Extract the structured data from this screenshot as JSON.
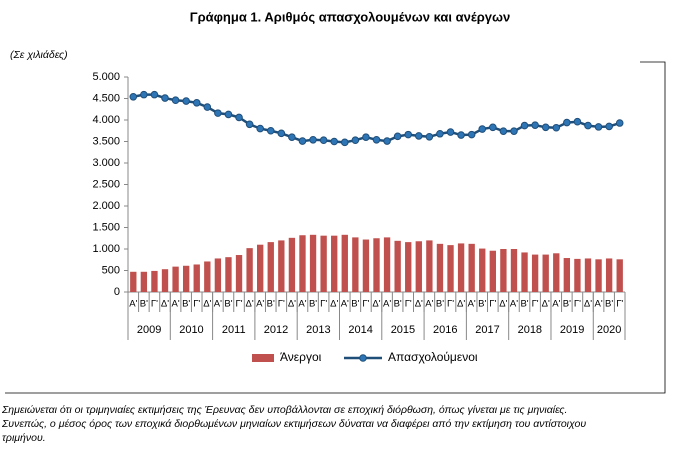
{
  "chart_data": {
    "type": "bar_line",
    "title": "Γράφημα 1. Αριθμός απασχολουμένων και ανέργων",
    "unit_label": "(Σε χιλιάδες)",
    "categories": [
      "Α'",
      "Β'",
      "Γ'",
      "Δ'",
      "Α'",
      "Β'",
      "Γ'",
      "Δ'",
      "Α'",
      "Β'",
      "Γ'",
      "Δ'",
      "Α'",
      "Β'",
      "Γ'",
      "Δ'",
      "Α'",
      "Β'",
      "Γ'",
      "Δ'",
      "Α'",
      "Β'",
      "Γ'",
      "Δ'",
      "Α'",
      "Β'",
      "Γ'",
      "Δ'",
      "Α'",
      "Β'",
      "Γ'",
      "Δ'",
      "Α'",
      "Β'",
      "Γ'",
      "Δ'",
      "Α'",
      "Β'",
      "Γ'",
      "Δ'",
      "Α'",
      "Β'",
      "Γ'",
      "Δ'",
      "Α'",
      "Β'",
      "Γ'"
    ],
    "years": [
      "2009",
      "2010",
      "2011",
      "2012",
      "2013",
      "2014",
      "2015",
      "2016",
      "2017",
      "2018",
      "2019",
      "2020"
    ],
    "series": [
      {
        "name": "Άνεργοι",
        "kind": "bar",
        "color": "#c0504d",
        "values": [
          470,
          470,
          490,
          530,
          590,
          610,
          640,
          710,
          780,
          810,
          860,
          1020,
          1100,
          1160,
          1200,
          1260,
          1320,
          1330,
          1310,
          1310,
          1330,
          1270,
          1220,
          1250,
          1270,
          1190,
          1160,
          1180,
          1200,
          1120,
          1090,
          1130,
          1120,
          1010,
          960,
          1000,
          1000,
          920,
          870,
          870,
          900,
          790,
          770,
          780,
          760,
          780,
          760
        ]
      },
      {
        "name": "Απασχολούμενοι",
        "kind": "line",
        "color": "#1f4e79",
        "values": [
          4540,
          4590,
          4590,
          4510,
          4460,
          4440,
          4400,
          4300,
          4160,
          4130,
          4060,
          3900,
          3800,
          3750,
          3690,
          3600,
          3510,
          3540,
          3530,
          3500,
          3480,
          3530,
          3600,
          3540,
          3510,
          3620,
          3660,
          3630,
          3610,
          3680,
          3720,
          3650,
          3660,
          3790,
          3830,
          3740,
          3740,
          3870,
          3880,
          3830,
          3820,
          3940,
          3960,
          3870,
          3840,
          3850,
          3930
        ]
      }
    ],
    "ylim": [
      0,
      5000
    ],
    "yticks": [
      0,
      {
        "value": 500,
        "label": "500"
      },
      {
        "value": 1000,
        "label": "1.000"
      },
      {
        "value": 1500,
        "label": "1.500"
      },
      {
        "value": 2000,
        "label": "2.000"
      },
      {
        "value": 2500,
        "label": "2.500"
      },
      {
        "value": 3000,
        "label": "3.000"
      },
      {
        "value": 3500,
        "label": "3.500"
      },
      {
        "value": 4000,
        "label": "4.000"
      },
      {
        "value": 4500,
        "label": "4.500"
      },
      {
        "value": 5000,
        "label": "5.000"
      }
    ],
    "grid": false,
    "legend": "bottom",
    "footnote": [
      "Σημειώνεται ότι οι τριμηνιαίες εκτιμήσεις της Έρευνας δεν υποβάλλονται σε εποχική διόρθωση, όπως γίνεται με τις μηνιαίες.",
      "Συνεπώς, ο μέσος όρος των εποχικά διορθωμένων μηνιαίων εκτιμήσεων δύναται να διαφέρει από την εκτίμηση του αντίστοιχου",
      "τριμήνου."
    ]
  }
}
